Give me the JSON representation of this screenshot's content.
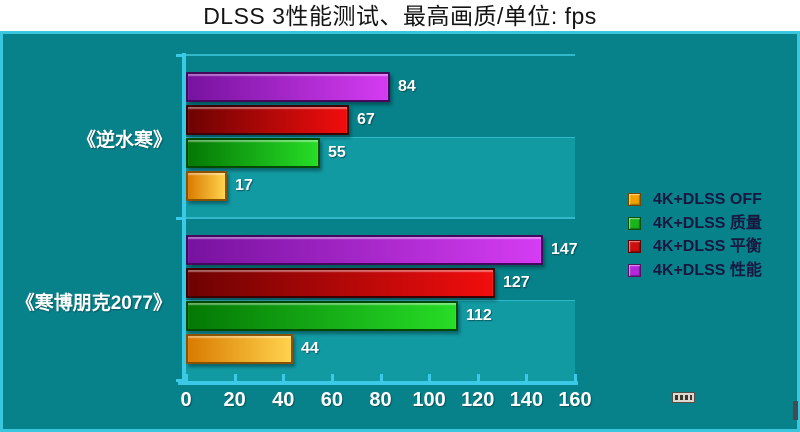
{
  "title": "DLSS 3性能测试、最高画质/单位: fps",
  "chart_data": {
    "type": "bar",
    "orientation": "horizontal",
    "title": "DLSS 3性能测试、最高画质/单位: fps",
    "categories": [
      "《逆水寒》",
      "《寒博朋克2077》"
    ],
    "series": [
      {
        "name": "4K+DLSS OFF",
        "values": [
          17,
          44
        ],
        "color": "#F2A200",
        "gradient": [
          "#D97B00",
          "#FFD34D"
        ],
        "border": "#8A5200"
      },
      {
        "name": "4K+DLSS 质量",
        "values": [
          55,
          112
        ],
        "color": "#1AB41A",
        "gradient": [
          "#047804",
          "#27DD27"
        ],
        "border": "#024A02"
      },
      {
        "name": "4K+DLSS 平衡",
        "values": [
          67,
          127
        ],
        "color": "#CC0F0F",
        "gradient": [
          "#6E0202",
          "#F20D0D"
        ],
        "border": "#3D0000"
      },
      {
        "name": "4K+DLSS 性能",
        "values": [
          84,
          147
        ],
        "color": "#B428DC",
        "gradient": [
          "#77129F",
          "#D53CF2"
        ],
        "border": "#43085C"
      }
    ],
    "xlabel": "",
    "ylabel": "",
    "xlim": [
      0,
      160
    ],
    "x_ticks": [
      0,
      20,
      40,
      60,
      80,
      100,
      120,
      140,
      160
    ],
    "grid": "category-bands",
    "legend_position": "right",
    "value_labels": true,
    "bar_order_top_to_bottom": [
      "4K+DLSS 性能",
      "4K+DLSS 平衡",
      "4K+DLSS 质量",
      "4K+DLSS OFF"
    ]
  },
  "colors": {
    "panel_background": "#07828A",
    "band_light": "#129AA3",
    "axis_cyan": "#3CC9E8",
    "gridline_cyan": "#2FB9CB",
    "panel_border": "#3AC6DC",
    "axis_text": "#FFFFFF",
    "legend_text": "#171740",
    "title_text": "#141414"
  },
  "icons": {
    "watermark": "watermark-badge"
  }
}
